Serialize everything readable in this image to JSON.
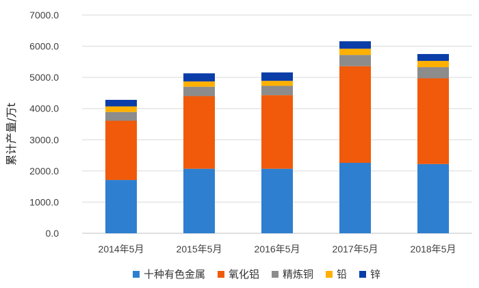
{
  "chart_data": {
    "type": "bar",
    "stacked": true,
    "categories": [
      "2014年5月",
      "2015年5月",
      "2016年5月",
      "2017年5月",
      "2018年5月"
    ],
    "series": [
      {
        "name": "十种有色金属",
        "color": "#2E7FD0",
        "values": [
          1710,
          2070,
          2070,
          2260,
          2220
        ]
      },
      {
        "name": "氧化铝",
        "color": "#F05A0A",
        "values": [
          1900,
          2330,
          2360,
          3100,
          2750
        ]
      },
      {
        "name": "精炼铜",
        "color": "#8C8C8C",
        "values": [
          280,
          300,
          300,
          360,
          360
        ]
      },
      {
        "name": "铅",
        "color": "#FFB000",
        "values": [
          180,
          170,
          160,
          200,
          200
        ]
      },
      {
        "name": "锌",
        "color": "#0A3DA8",
        "values": [
          210,
          260,
          270,
          240,
          220
        ]
      }
    ],
    "ylabel": "累计产量/万t",
    "ylim": [
      0,
      7000
    ],
    "yticks": [
      "0.0",
      "1000.0",
      "2000.0",
      "3000.0",
      "4000.0",
      "5000.0",
      "6000.0",
      "7000.0"
    ],
    "grid": true,
    "legend": "bottom"
  }
}
